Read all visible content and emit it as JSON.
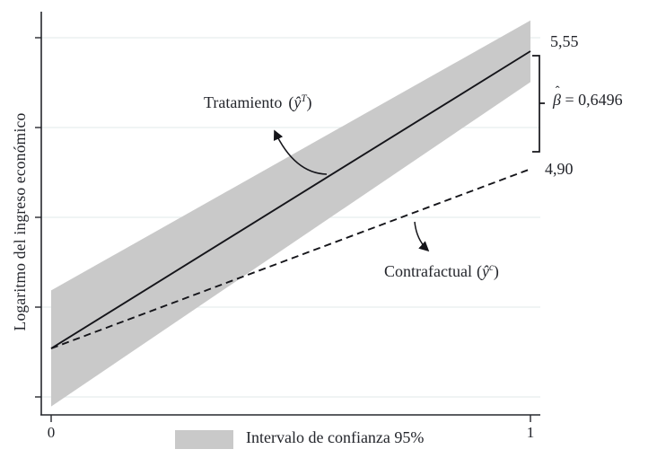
{
  "figure": {
    "background": "#ffffff",
    "colors": {
      "band": "#c9c9c9",
      "line": "#15151a",
      "grid": "#e7edee",
      "axis": "#26282e",
      "text": "#23252b"
    }
  },
  "y_axis": {
    "label": "Logaritmo del ingreso económico",
    "tick_count": 5,
    "tick_labels_shown": false
  },
  "x_axis": {
    "tick_0": "0",
    "tick_1": "1"
  },
  "annotations": {
    "treatment": {
      "text": "Tratamiento",
      "open": "(",
      "symbol": "ŷ",
      "sup": "T",
      "close": ")"
    },
    "counterfactual": {
      "text": "Contrafactual",
      "open": "(",
      "symbol": "ŷ",
      "sup": "c",
      "close": ")"
    },
    "value_top": "5,55",
    "value_bottom": "4,90",
    "beta": {
      "hat": "ˆ",
      "symbol": "β",
      "value": " = 0,6496"
    }
  },
  "legend": {
    "label": "Intervalo de confianza 95%"
  },
  "chart_data": {
    "type": "line",
    "title": "",
    "xlabel": "",
    "ylabel": "Logaritmo del ingreso económico",
    "xlim": [
      0,
      1
    ],
    "x_tick_labels": [
      "0",
      "1"
    ],
    "y_ticks_unlabeled": 5,
    "grid": "horizontal",
    "legend_position": "bottom",
    "series": [
      {
        "name": "Tratamiento (ŷ^T)",
        "style": "solid",
        "x": [
          0,
          1
        ],
        "values": [
          3.91,
          5.55
        ]
      },
      {
        "name": "Contrafactual (ŷ^c)",
        "style": "dashed",
        "x": [
          0,
          1
        ],
        "values": [
          3.91,
          4.9
        ]
      }
    ],
    "confidence_band": {
      "label": "Intervalo de confianza 95%",
      "series": "Tratamiento (ŷ^T)",
      "level": "95%",
      "x": [
        0,
        1
      ],
      "upper": [
        4.23,
        5.72
      ],
      "lower": [
        3.59,
        5.38
      ]
    },
    "annotations": {
      "treatment_end_value": 5.55,
      "counterfactual_end_value": 4.9,
      "beta_hat": 0.6496,
      "beta_label": "β̂ = 0,6496"
    }
  }
}
